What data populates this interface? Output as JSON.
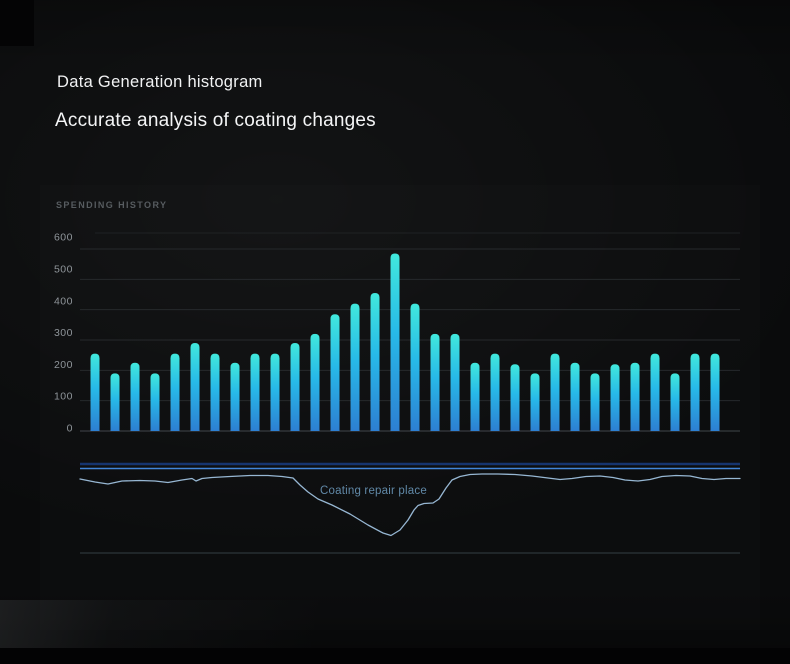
{
  "page": {
    "title_line1": "Data Generation histogram",
    "title_line2": "Accurate analysis of coating changes"
  },
  "panel": {
    "section_label": "SPENDING HISTORY"
  },
  "colors": {
    "bar_top": "#41e8dc",
    "bar_mid": "#27b9e8",
    "bar_bottom": "#2d7fd2",
    "grid_line": "#26292c",
    "grid_top_line": "#1f2224",
    "axis_baseline": "#41464b",
    "tick_text": "#8f959a",
    "section_text": "#575c60",
    "ref_line_dark": "#16346e",
    "ref_line_bright": "#4285d8",
    "profile_line": "#a3c6e4",
    "annotation_text": "#6189a8",
    "bottom_rule": "#333f44",
    "title_text": "#f1f2f3"
  },
  "chart_data": [
    {
      "type": "bar",
      "title": "SPENDING HISTORY",
      "xlabel": "",
      "ylabel": "",
      "ylim": [
        0,
        650
      ],
      "yticks": [
        0,
        100,
        200,
        300,
        400,
        500,
        600
      ],
      "grid": true,
      "legend": "none",
      "categories": [],
      "values": [
        255,
        190,
        225,
        190,
        255,
        290,
        255,
        225,
        255,
        255,
        290,
        320,
        385,
        420,
        455,
        585,
        420,
        320,
        320,
        225,
        255,
        220,
        190,
        255,
        225,
        190,
        220,
        225,
        255,
        190,
        255,
        255
      ]
    },
    {
      "type": "line",
      "title": "",
      "xlabel": "",
      "ylabel": "",
      "grid": false,
      "legend": "none",
      "annotation": {
        "text": "Coating repair place",
        "x": 280,
        "y": 309
      },
      "series": [
        {
          "name": "upper-reference-line-dark",
          "kind": "hline",
          "y": 279
        },
        {
          "name": "upper-reference-line-bright",
          "kind": "hline",
          "y": 283.5
        },
        {
          "name": "coating-profile",
          "points": [
            [
              40,
              294
            ],
            [
              55,
              297
            ],
            [
              68,
              299
            ],
            [
              82,
              296
            ],
            [
              100,
              295.5
            ],
            [
              115,
              296
            ],
            [
              128,
              297.5
            ],
            [
              142,
              295
            ],
            [
              152,
              293.5
            ],
            [
              156,
              296
            ],
            [
              162,
              293.5
            ],
            [
              172,
              292.5
            ],
            [
              190,
              291.5
            ],
            [
              210,
              290.5
            ],
            [
              228,
              290.5
            ],
            [
              242,
              291.5
            ],
            [
              253,
              293
            ],
            [
              260,
              300
            ],
            [
              268,
              307
            ],
            [
              278,
              314
            ],
            [
              292,
              320
            ],
            [
              310,
              329
            ],
            [
              328,
              340
            ],
            [
              343,
              348
            ],
            [
              351,
              350.5
            ],
            [
              360,
              345
            ],
            [
              368,
              335
            ],
            [
              374,
              325
            ],
            [
              378,
              320.5
            ],
            [
              384,
              318.5
            ],
            [
              393,
              318
            ],
            [
              399,
              314
            ],
            [
              406,
              303
            ],
            [
              412,
              295
            ],
            [
              420,
              291.5
            ],
            [
              430,
              289.5
            ],
            [
              442,
              289
            ],
            [
              458,
              289
            ],
            [
              475,
              289.5
            ],
            [
              492,
              291
            ],
            [
              508,
              293
            ],
            [
              520,
              294.5
            ],
            [
              532,
              293.5
            ],
            [
              546,
              291.5
            ],
            [
              560,
              291
            ],
            [
              573,
              292.5
            ],
            [
              585,
              295
            ],
            [
              598,
              296
            ],
            [
              610,
              294.5
            ],
            [
              622,
              291.5
            ],
            [
              636,
              290.5
            ],
            [
              650,
              291
            ],
            [
              662,
              293.5
            ],
            [
              674,
              294.5
            ],
            [
              686,
              293.5
            ],
            [
              700,
              293.5
            ]
          ]
        },
        {
          "name": "bottom-boundary-rule",
          "kind": "hline",
          "y": 368
        }
      ]
    }
  ]
}
